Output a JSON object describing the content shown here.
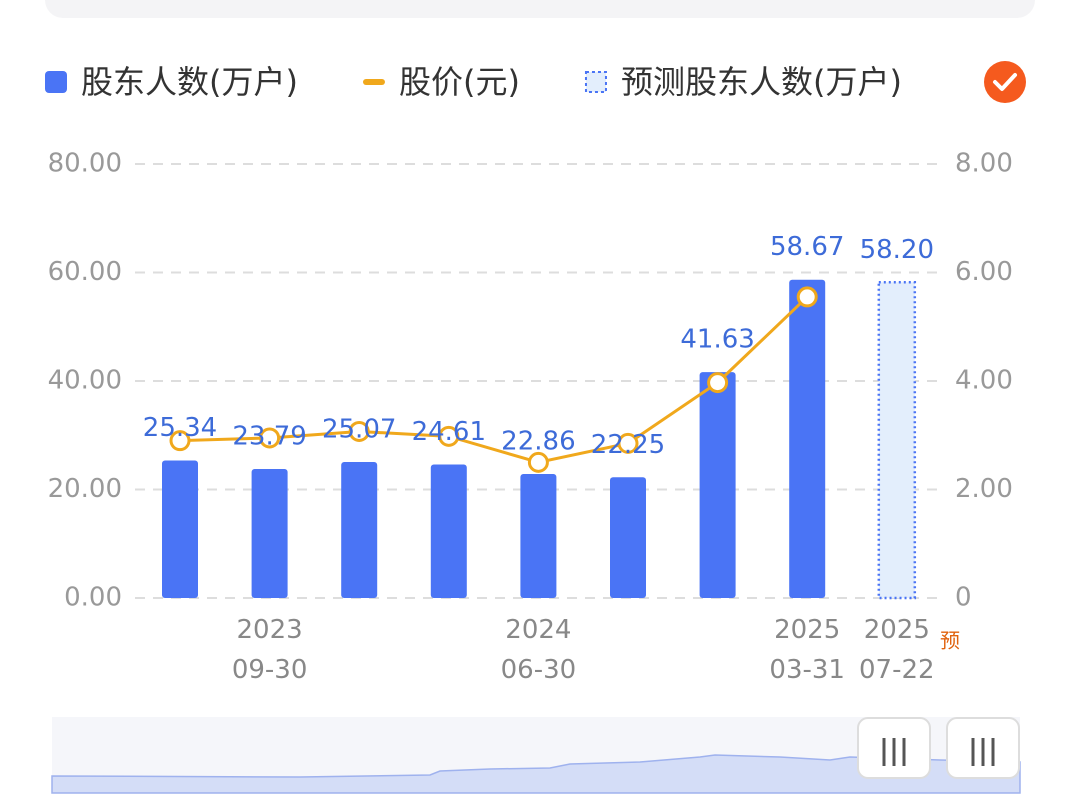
{
  "chart_data": {
    "type": "bar",
    "categories": [
      null,
      "2023\n09-30",
      null,
      null,
      "2024\n06-30",
      null,
      null,
      "2025\n03-31",
      "2025\n07-22"
    ],
    "series": [
      {
        "name": "股东人数(万户)",
        "type": "bar",
        "color": "#4a74f5",
        "label_color": "#3d6bd8",
        "values": [
          25.34,
          23.79,
          25.07,
          24.61,
          22.86,
          22.25,
          41.63,
          58.67,
          null
        ]
      },
      {
        "name": "股价(元)",
        "type": "line",
        "axis": "y2",
        "color": "#f0a81c",
        "values": [
          2.9,
          2.95,
          3.07,
          2.98,
          2.5,
          2.85,
          3.97,
          5.55,
          null
        ]
      },
      {
        "name": "预测股东人数(万户)",
        "type": "bar",
        "color": "#4a74f5",
        "fill": "#e3eefc",
        "border": "dotted",
        "label_color": "#3d6bd8",
        "values": [
          null,
          null,
          null,
          null,
          null,
          null,
          null,
          null,
          58.2
        ],
        "value_labels": [
          null,
          null,
          null,
          null,
          null,
          null,
          null,
          null,
          "58.20"
        ]
      }
    ],
    "forecast_note": "预",
    "ylim": [
      0,
      80
    ],
    "yticks": [
      {
        "value": 0,
        "label": "0.00"
      },
      {
        "value": 20,
        "label": "20.00"
      },
      {
        "value": 40,
        "label": "40.00"
      },
      {
        "value": 60,
        "label": "60.00"
      },
      {
        "value": 80,
        "label": "80.00"
      }
    ],
    "y2lim": [
      0,
      8
    ],
    "y2ticks": [
      0,
      {
        "value": 2,
        "label": "2.00"
      },
      {
        "value": 4,
        "label": "4.00"
      },
      {
        "value": 6,
        "label": "6.00"
      },
      {
        "value": 8,
        "label": "8.00"
      }
    ],
    "grid": true
  }
}
